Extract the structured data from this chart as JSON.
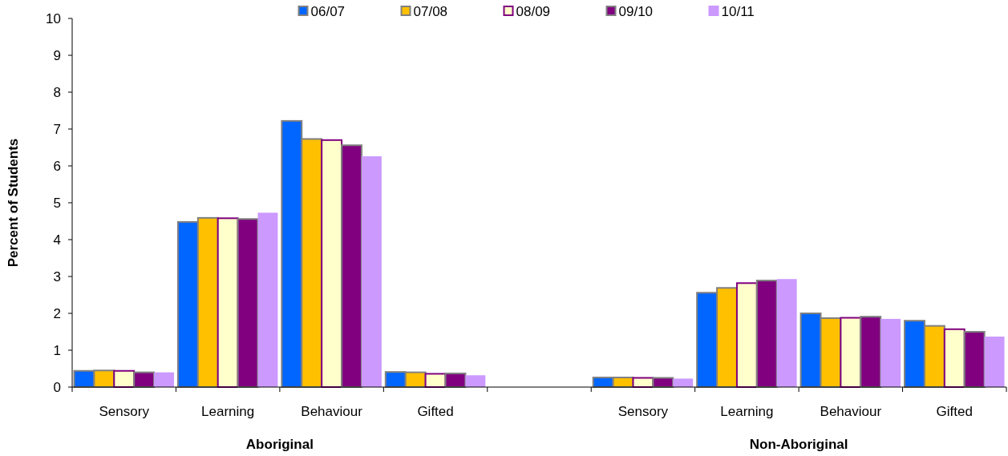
{
  "chart_data": {
    "type": "bar",
    "ylabel": "Percent of Students",
    "categories": [
      "Sensory",
      "Learning",
      "Behaviour",
      "Gifted",
      null,
      "Sensory",
      "Learning",
      "Behaviour",
      "Gifted"
    ],
    "series": [
      {
        "name": "06/07",
        "color": "#0066ff",
        "values": [
          0.44,
          4.48,
          7.22,
          0.41,
          null,
          0.26,
          2.56,
          2.0,
          1.8
        ]
      },
      {
        "name": "07/08",
        "color": "#ffc000",
        "values": [
          0.45,
          4.59,
          6.73,
          0.4,
          null,
          0.26,
          2.69,
          1.87,
          1.66
        ]
      },
      {
        "name": "08/09",
        "color": "#ffffcc",
        "values": [
          0.44,
          4.58,
          6.7,
          0.36,
          null,
          0.25,
          2.82,
          1.88,
          1.57
        ]
      },
      {
        "name": "09/10",
        "color": "#800080",
        "values": [
          0.4,
          4.56,
          6.56,
          0.37,
          null,
          0.25,
          2.89,
          1.91,
          1.5
        ]
      },
      {
        "name": "10/11",
        "color": "#cc99ff",
        "values": [
          0.4,
          4.73,
          6.26,
          0.32,
          null,
          0.23,
          2.93,
          1.85,
          1.37
        ]
      }
    ],
    "annotations": [
      "Aboriginal",
      "Non-Aboriginal"
    ],
    "ylim": [
      0,
      10
    ],
    "yticks": [
      0,
      1,
      2,
      3,
      4,
      5,
      6,
      7,
      8,
      9,
      10
    ],
    "grid": false,
    "legend": "top"
  }
}
